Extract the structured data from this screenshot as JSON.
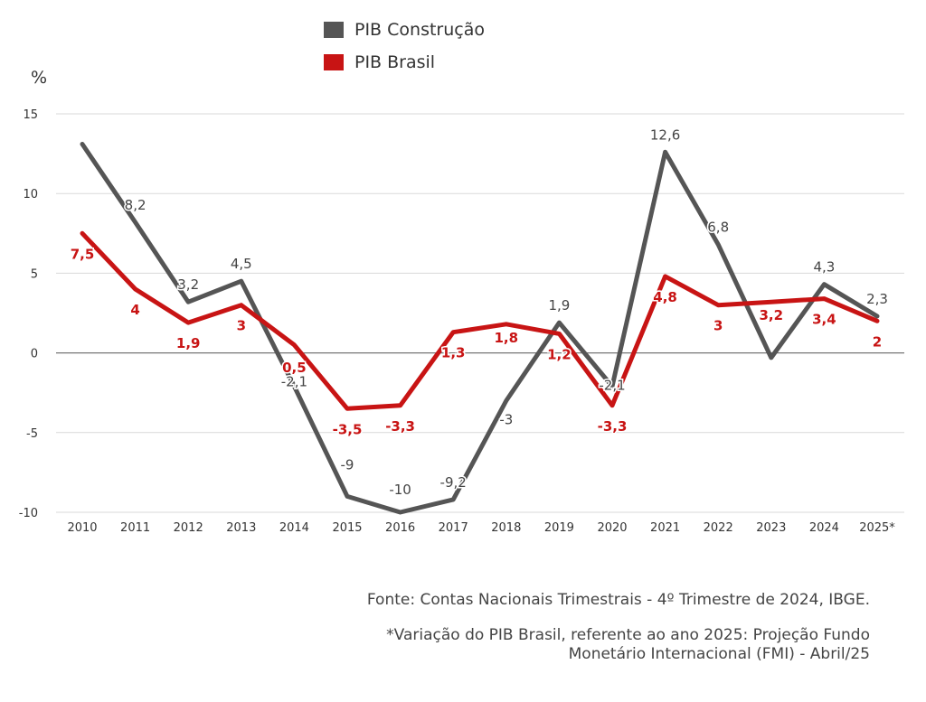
{
  "legend": {
    "items": [
      {
        "label": "PIB Construção",
        "color": "#555555"
      },
      {
        "label": "PIB Brasil",
        "color": "#c81414"
      }
    ]
  },
  "notes": {
    "source": "Fonte: Contas Nacionais Trimestrais - 4º Trimestre de 2024, IBGE.",
    "projection_line1": "*Variação do PIB Brasil, referente ao ano 2025: Projeção Fundo",
    "projection_line2": "Monetário Internacional (FMI) - Abril/25"
  },
  "chart_data": {
    "type": "line",
    "ylabel": "%",
    "ylim": [
      -10,
      15
    ],
    "yticks": [
      15,
      10,
      5,
      0,
      -5,
      -10
    ],
    "grid": true,
    "legend_position": "top",
    "categories": [
      "2010",
      "2011",
      "2012",
      "2013",
      "2014",
      "2015",
      "2016",
      "2017",
      "2018",
      "2019",
      "2020",
      "2021",
      "2022",
      "2023",
      "2024",
      "2025*"
    ],
    "series": [
      {
        "name": "PIB Construção",
        "color": "#555555",
        "values": [
          13.1,
          8.2,
          3.2,
          4.5,
          -2.1,
          -9.0,
          -10.0,
          -9.2,
          -3.0,
          1.9,
          -2.1,
          12.6,
          6.8,
          -0.3,
          4.3,
          2.3
        ],
        "labels": [
          "",
          "8,2",
          "3,2",
          "4,5",
          "-2,1",
          "-9",
          "-10",
          "-9,2",
          "-3",
          "1,9",
          "-2,1",
          "12,6",
          "6,8",
          "",
          "4,3",
          "2,3"
        ]
      },
      {
        "name": "PIB Brasil",
        "color": "#c81414",
        "values": [
          7.5,
          4.0,
          1.9,
          3.0,
          0.5,
          -3.5,
          -3.3,
          1.3,
          1.8,
          1.2,
          -3.3,
          4.8,
          3.0,
          3.2,
          3.4,
          2.0
        ],
        "labels": [
          "7,5",
          "4",
          "1,9",
          "3",
          "0,5",
          "-3,5",
          "-3,3",
          "1,3",
          "1,8",
          "1,2",
          "-3,3",
          "4,8",
          "3",
          "3,2",
          "3,4",
          "2"
        ]
      }
    ]
  }
}
